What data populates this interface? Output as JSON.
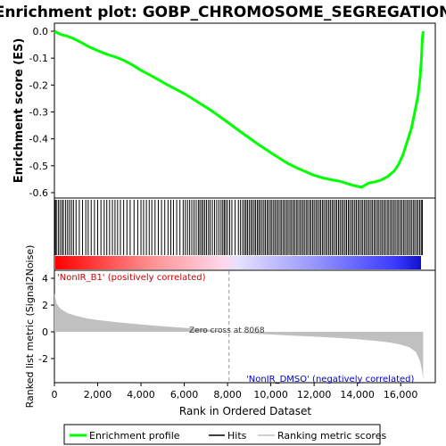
{
  "chart_data": {
    "type": "line",
    "title": "Enrichment plot: GOBP_CHROMOSOME_SEGREGATION",
    "panels": {
      "enrichment": {
        "ylabel": "Enrichment score (ES)",
        "ylim": [
          -0.62,
          0.03
        ],
        "yticks": [
          "0.0",
          "-0.1",
          "-0.2",
          "-0.3",
          "-0.4",
          "-0.5",
          "-0.6"
        ],
        "series": [
          {
            "name": "Enrichment profile",
            "color": "#00ff00",
            "x": [
              0,
              300,
              600,
              900,
              1200,
              1600,
              2000,
              2400,
              2800,
              3200,
              3600,
              4000,
              4400,
              4800,
              5200,
              5600,
              6000,
              6400,
              6800,
              7200,
              7600,
              8000,
              8400,
              8800,
              9200,
              9600,
              10000,
              10400,
              10800,
              11200,
              11600,
              12000,
              12400,
              12800,
              13200,
              13600,
              13900,
              14200,
              14500,
              14800,
              15100,
              15400,
              15700,
              15900,
              16100,
              16300,
              16500,
              16650,
              16800,
              16900,
              16960,
              17000,
              17040
            ],
            "y": [
              0.0,
              -0.012,
              -0.018,
              -0.028,
              -0.04,
              -0.058,
              -0.072,
              -0.085,
              -0.095,
              -0.108,
              -0.125,
              -0.145,
              -0.162,
              -0.18,
              -0.198,
              -0.215,
              -0.232,
              -0.252,
              -0.272,
              -0.292,
              -0.315,
              -0.338,
              -0.362,
              -0.385,
              -0.408,
              -0.43,
              -0.452,
              -0.472,
              -0.492,
              -0.508,
              -0.522,
              -0.535,
              -0.545,
              -0.552,
              -0.558,
              -0.568,
              -0.575,
              -0.58,
              -0.565,
              -0.56,
              -0.553,
              -0.54,
              -0.52,
              -0.495,
              -0.46,
              -0.41,
              -0.36,
              -0.3,
              -0.24,
              -0.17,
              -0.1,
              -0.03,
              0.0
            ]
          }
        ]
      },
      "hits": {
        "legend": "Hits",
        "description_values": "gene set member positions (rank)",
        "positions": [
          40,
          90,
          180,
          260,
          350,
          420,
          520,
          610,
          700,
          790,
          880,
          1000,
          1150,
          1300,
          1450,
          1560,
          1700,
          1850,
          2000,
          2150,
          2300,
          2420,
          2550,
          2680,
          2800,
          2920,
          3050,
          3200,
          3350,
          3500,
          3680,
          3850,
          4000,
          4120,
          4250,
          4380,
          4500,
          4650,
          4800,
          4950,
          5100,
          5250,
          5380,
          5500,
          5650,
          5800,
          5950,
          6050,
          6150,
          6250,
          6350,
          6450,
          6550,
          6650,
          6720,
          6800,
          6870,
          6950,
          7030,
          7120,
          7200,
          7300,
          7400,
          7500,
          7600,
          7700,
          7780,
          7850,
          7920,
          8000,
          8100,
          8200,
          8350,
          8500,
          8600,
          8700,
          8780,
          8850,
          8920,
          9000,
          9080,
          9150,
          9230,
          9300,
          9380,
          9450,
          9520,
          9600,
          9680,
          9750,
          9830,
          9900,
          9980,
          10050,
          10130,
          10200,
          10280,
          10350,
          10430,
          10500,
          10580,
          10650,
          10730,
          10800,
          10880,
          10950,
          11030,
          11100,
          11180,
          11250,
          11330,
          11400,
          11480,
          11550,
          11630,
          11700,
          11780,
          11850,
          11930,
          12000,
          12080,
          12150,
          12230,
          12300,
          12380,
          12450,
          12530,
          12600,
          12680,
          12750,
          12830,
          12900,
          12980,
          13050,
          13130,
          13200,
          13280,
          13350,
          13430,
          13500,
          13580,
          13650,
          13730,
          13800,
          13880,
          13950,
          14030,
          14100,
          14180,
          14250,
          14330,
          14400,
          14480,
          14550,
          14630,
          14700,
          14780,
          14850,
          14930,
          15000,
          15080,
          15150,
          15230,
          15300,
          15380,
          15450,
          15530,
          15600,
          15680,
          15750,
          15830,
          15900,
          15980,
          16050,
          16130,
          16200,
          16280,
          16350,
          16430,
          16500,
          16580,
          16650,
          16730,
          16800,
          16880,
          16950,
          17000
        ]
      },
      "ranked_metric": {
        "ylabel": "Ranked list metric (Signal2Noise)",
        "ylim": [
          -3.8,
          4.6
        ],
        "yticks": [
          "4",
          "2",
          "0",
          "-2"
        ],
        "legend": "Ranking metric scores",
        "color": "#c0c0c0",
        "x": [
          0,
          100,
          300,
          600,
          1000,
          1500,
          2000,
          3000,
          4000,
          5000,
          6000,
          7000,
          8068,
          9000,
          10000,
          11000,
          12000,
          13000,
          14000,
          15000,
          15500,
          16000,
          16400,
          16700,
          16900,
          17000,
          17040
        ],
        "y": [
          2.9,
          2.1,
          1.7,
          1.4,
          1.2,
          1.0,
          0.88,
          0.7,
          0.55,
          0.42,
          0.3,
          0.18,
          0.0,
          -0.12,
          -0.2,
          -0.28,
          -0.36,
          -0.44,
          -0.55,
          -0.7,
          -0.8,
          -0.95,
          -1.15,
          -1.5,
          -2.2,
          -3.0,
          -3.6
        ],
        "zero_cross_label": "Zero cross at 8068",
        "zero_cross": 8068,
        "positive_label": "'NonIR_B1' (positively correlated)",
        "negative_label": "'NonIR_DMSO' (negatively correlated)"
      }
    },
    "xlabel": "Rank in Ordered Dataset",
    "xlim": [
      0,
      17600
    ],
    "xticks": [
      "0",
      "2,000",
      "4,000",
      "6,000",
      "8,000",
      "10,000",
      "12,000",
      "14,000",
      "16,000"
    ],
    "legend_entries": [
      "Enrichment profile",
      "Hits",
      "Ranking metric scores"
    ],
    "colors": {
      "profile": "#00ff00",
      "positive": "#ff0000",
      "negative": "#0000ff",
      "positive_text": "#cc0000",
      "negative_text": "#0000cc"
    }
  }
}
